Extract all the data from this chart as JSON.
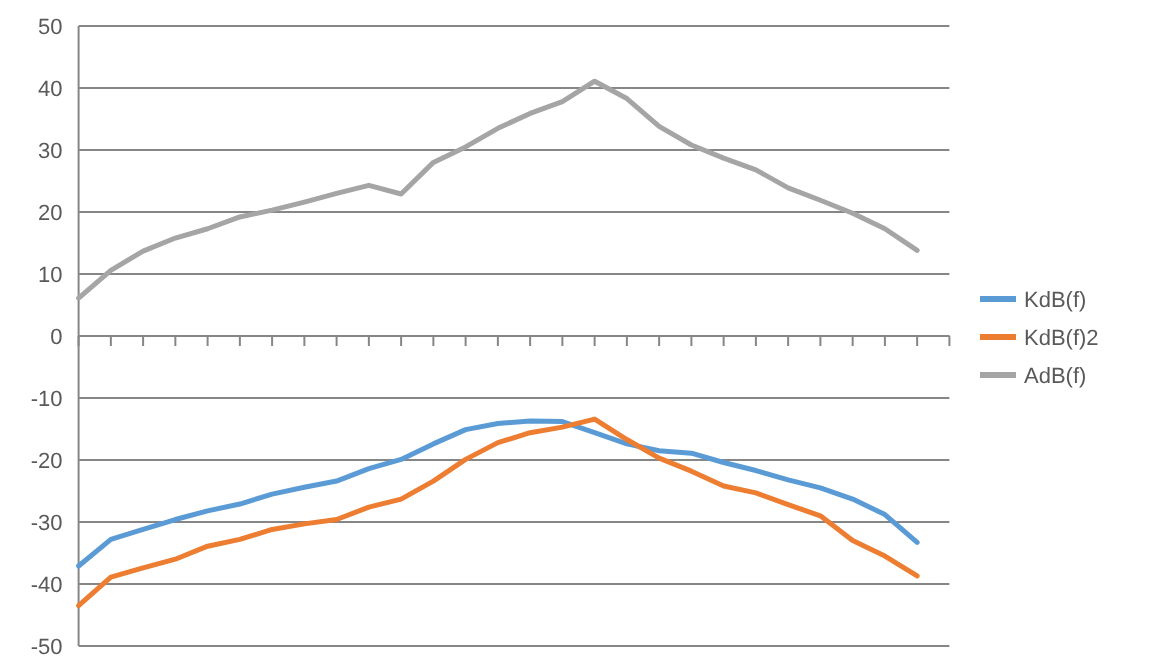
{
  "chart_data": {
    "type": "line",
    "categories": [
      null,
      null,
      null,
      null,
      null,
      null,
      null,
      null,
      null,
      null,
      null,
      null,
      null,
      null,
      null,
      null,
      null,
      null,
      null,
      null,
      null,
      null,
      null,
      null,
      null,
      null,
      null
    ],
    "series": [
      {
        "name": "KdB(f)",
        "color": "#5b9bd5",
        "values": [
          -37.1,
          -32.8,
          -31.2,
          -29.6,
          -28.2,
          -27.1,
          -25.5,
          -24.4,
          -23.4,
          -21.4,
          -19.9,
          -17.4,
          -15.1,
          -14.1,
          -13.7,
          -13.8,
          -15.6,
          -17.4,
          -18.5,
          -18.9,
          -20.4,
          -21.7,
          -23.2,
          -24.5,
          -26.3,
          -28.8,
          -33.3
        ]
      },
      {
        "name": "KdB(f)2",
        "color": "#ed7d31",
        "values": [
          -43.5,
          -38.9,
          -37.4,
          -36.0,
          -33.9,
          -32.8,
          -31.2,
          -30.3,
          -29.6,
          -27.6,
          -26.3,
          -23.4,
          -19.9,
          -17.2,
          -15.6,
          -14.7,
          -13.4,
          -16.7,
          -19.7,
          -21.8,
          -24.2,
          -25.3,
          -27.2,
          -29.0,
          -33.0,
          -35.5,
          -38.7
        ]
      },
      {
        "name": "AdB(f)",
        "color": "#a5a5a5",
        "values": [
          6.1,
          10.6,
          13.7,
          15.8,
          17.3,
          19.2,
          20.3,
          21.6,
          23.0,
          24.3,
          22.9,
          28.0,
          30.5,
          33.5,
          35.9,
          37.8,
          41.1,
          38.3,
          33.8,
          30.8,
          28.7,
          26.8,
          23.9,
          21.9,
          19.8,
          17.3,
          13.8
        ]
      }
    ],
    "ylim": [
      -50,
      50
    ],
    "yticks": [
      -50,
      -40,
      -30,
      -20,
      -10,
      0,
      10,
      20,
      30,
      40,
      50
    ],
    "grid": "y",
    "legend": "right",
    "tick_labels": "y",
    "marker": "none",
    "line_style": "solid"
  }
}
